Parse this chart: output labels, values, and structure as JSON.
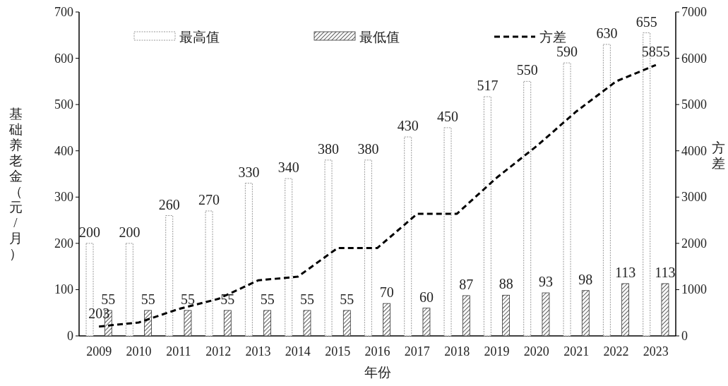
{
  "chart_data": {
    "type": "bar",
    "xlabel": "年份",
    "ylabel": "基础养老金（元/月）",
    "y2label": "方差",
    "categories": [
      "2009",
      "2010",
      "2011",
      "2012",
      "2013",
      "2014",
      "2015",
      "2016",
      "2017",
      "2018",
      "2019",
      "2020",
      "2021",
      "2022",
      "2023"
    ],
    "series": [
      {
        "name": "最高值",
        "color": "#999999",
        "values": [
          200,
          200,
          260,
          270,
          330,
          340,
          380,
          380,
          430,
          450,
          517,
          550,
          590,
          630,
          655
        ],
        "value_labels": [
          "200",
          "200",
          "260",
          "270",
          "330",
          "340",
          "380",
          "380",
          "430",
          "450",
          "517",
          "550",
          "590",
          "630",
          "655"
        ]
      },
      {
        "name": "最低值",
        "color": "#333333",
        "values": [
          55,
          55,
          55,
          55,
          55,
          55,
          55,
          70,
          60,
          87,
          88,
          93,
          98,
          113,
          113
        ],
        "value_labels": [
          "55",
          "55",
          "55",
          "55",
          "55",
          "55",
          "55",
          "70",
          "60",
          "87",
          "88",
          "93",
          "98",
          "113",
          "113"
        ]
      },
      {
        "name": "方差",
        "type": "line",
        "axis": "y2",
        "color": "#000000",
        "line_style": "dashed",
        "values": [
          203,
          290,
          580,
          800,
          1200,
          1280,
          1900,
          1900,
          2640,
          2640,
          3420,
          4100,
          4850,
          5500,
          5855
        ],
        "value_labels": [
          "203",
          null,
          null,
          null,
          null,
          null,
          null,
          null,
          null,
          null,
          null,
          null,
          null,
          null,
          "5855"
        ]
      }
    ],
    "ylim": [
      0,
      700
    ],
    "yticks": [
      0,
      100,
      200,
      300,
      400,
      500,
      600,
      700
    ],
    "y2lim": [
      0,
      7000
    ],
    "y2ticks": [
      0,
      1000,
      2000,
      3000,
      4000,
      5000,
      6000,
      7000
    ],
    "legend": "top",
    "grid": false
  }
}
